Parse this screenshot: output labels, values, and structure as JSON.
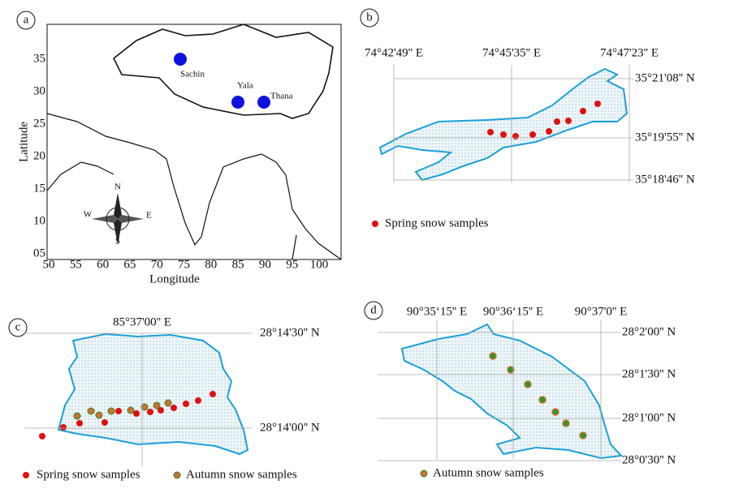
{
  "panels": {
    "a": {
      "label": "a",
      "x_ticks": [
        "50",
        "55",
        "60",
        "65",
        "70",
        "75",
        "80",
        "85",
        "90",
        "95",
        "100"
      ],
      "y_ticks": [
        "05",
        "10",
        "15",
        "20",
        "25",
        "30",
        "35"
      ],
      "x_label": "Longitude",
      "y_label": "Latitude",
      "sites": [
        "Sachin",
        "Yala",
        "Thana"
      ],
      "compass": [
        "N",
        "E",
        "S",
        "W"
      ]
    },
    "b": {
      "label": "b",
      "lon_labels": [
        "74°42'49'' E",
        "74°45'35'' E",
        "74°47'23'' E"
      ],
      "lat_labels": [
        "35°21'08'' N",
        "35°19'55'' N",
        "35°18'46'' N"
      ],
      "legend": [
        "Spring snow samples"
      ]
    },
    "c": {
      "label": "c",
      "lon_labels": [
        "85°37'00'' E"
      ],
      "lat_labels": [
        "28°14'30'' N",
        "28°14'00'' N"
      ],
      "legend": [
        "Spring snow samples",
        "Autumn snow samples"
      ]
    },
    "d": {
      "label": "d",
      "lon_labels": [
        "90°35‘15'' E",
        "90°36‘15'' E",
        "90°37'0'' E"
      ],
      "lat_labels": [
        "28°2'00'' N",
        "28°1'30'' N",
        "28°1'00'' N",
        "28°0'30'' N"
      ],
      "legend": [
        "Autumn snow samples"
      ]
    }
  }
}
